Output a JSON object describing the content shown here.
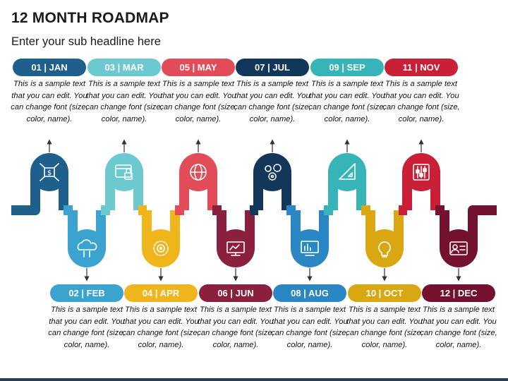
{
  "title": "12 MONTH ROADMAP",
  "subtitle": "Enter your sub headline here",
  "description_text": "This is a sample text that you can edit. You can change font (size, color, name).",
  "months": [
    {
      "label": "01 | JAN",
      "color": "#1f5f8b",
      "icon": "money-network-icon",
      "row": "top"
    },
    {
      "label": "02 | FEB",
      "color": "#3ba3d0",
      "icon": "cloud-transfer-icon",
      "row": "bottom"
    },
    {
      "label": "03 | MAR",
      "color": "#6cc9cf",
      "icon": "browser-lock-icon",
      "row": "top"
    },
    {
      "label": "04 | APR",
      "color": "#efb51a",
      "icon": "gear-cycle-icon",
      "row": "bottom"
    },
    {
      "label": "05 | MAY",
      "color": "#e24b58",
      "icon": "globe-refresh-icon",
      "row": "top"
    },
    {
      "label": "06 | JUN",
      "color": "#8b1f3e",
      "icon": "monitor-chart-icon",
      "row": "bottom"
    },
    {
      "label": "07 | JUL",
      "color": "#13375a",
      "icon": "team-gears-icon",
      "row": "top"
    },
    {
      "label": "08 | AUG",
      "color": "#2b86c4",
      "icon": "bar-chart-monitor-icon",
      "row": "bottom"
    },
    {
      "label": "09 | SEP",
      "color": "#36b4b8",
      "icon": "ruler-triangle-icon",
      "row": "top"
    },
    {
      "label": "10 | OCT",
      "color": "#d9a711",
      "icon": "idea-bulb-icon",
      "row": "bottom"
    },
    {
      "label": "11 | NOV",
      "color": "#c91f37",
      "icon": "sliders-icon",
      "row": "top"
    },
    {
      "label": "12 | DEC",
      "color": "#73112e",
      "icon": "id-card-icon",
      "row": "bottom"
    }
  ]
}
